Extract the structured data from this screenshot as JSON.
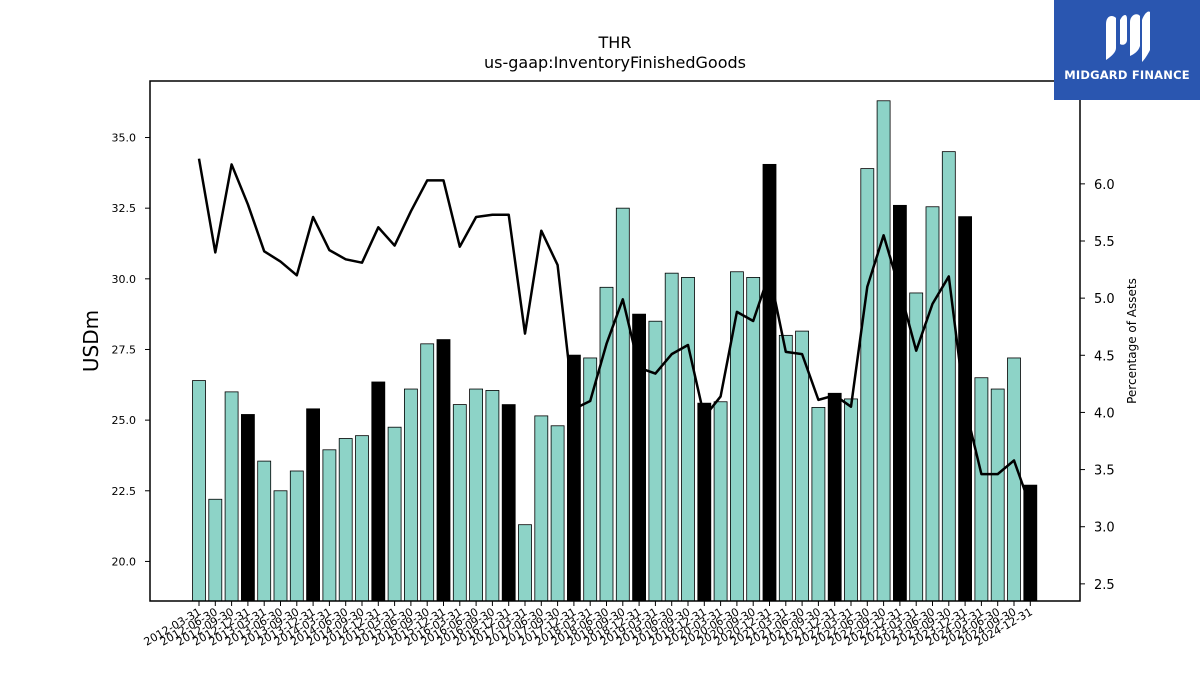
{
  "logo": {
    "text": "MIDGARD FINANCE",
    "bg_color": "#2a56b0",
    "icon": "midgard-m-logo-icon"
  },
  "chart_data": {
    "type": "bar",
    "title": "THR",
    "subtitle": "us-gaap:InventoryFinishedGoods",
    "ylabel": "USDm",
    "y2label": "Percentage of Assets",
    "ylim": [
      18.6,
      37.0
    ],
    "y2lim": [
      2.35,
      6.9
    ],
    "yticks": [
      "20.0",
      "22.5",
      "25.0",
      "27.5",
      "30.0",
      "32.5",
      "35.0"
    ],
    "y2ticks": [
      "2.5",
      "3.0",
      "3.5",
      "4.0",
      "4.5",
      "5.0",
      "5.5",
      "6.0"
    ],
    "bar_color": "#8dd3c7",
    "highlight_color": "#000000",
    "line_color": "#000000",
    "categories": [
      "2012-03-31",
      "2012-06-30",
      "2012-09-30",
      "2012-12-31",
      "2013-03-31",
      "2013-06-30",
      "2013-09-30",
      "2013-12-31",
      "2014-03-31",
      "2014-06-30",
      "2014-09-30",
      "2014-12-31",
      "2015-03-31",
      "2015-06-30",
      "2015-09-30",
      "2015-12-31",
      "2016-03-31",
      "2016-06-30",
      "2016-09-30",
      "2016-12-31",
      "2017-03-31",
      "2017-06-30",
      "2017-09-30",
      "2017-12-31",
      "2018-03-31",
      "2018-06-30",
      "2018-09-30",
      "2018-12-31",
      "2019-03-31",
      "2019-06-30",
      "2019-09-30",
      "2019-12-31",
      "2020-03-31",
      "2020-06-30",
      "2020-09-30",
      "2020-12-31",
      "2021-03-31",
      "2021-06-30",
      "2021-09-30",
      "2021-12-31",
      "2022-03-31",
      "2022-06-30",
      "2022-09-30",
      "2022-12-31",
      "2023-03-31",
      "2023-06-30",
      "2023-09-30",
      "2023-12-31",
      "2024-03-31",
      "2024-06-30",
      "2024-09-30",
      "2024-12-31"
    ],
    "x_tick_labels": [
      "2012-03-31",
      "2012-06-30",
      "2012-09-30",
      "2012-12-31",
      "2013-03-31",
      "2013-06-30",
      "2013-09-30",
      "2013-12-31",
      "2014-03-31",
      "2014-06-30",
      "2014-09-30",
      "2014-12-31",
      "2015-03-31",
      "2015-06-30",
      "2015-09-30",
      "2015-12-31",
      "2016-03-31",
      "2016-06-30",
      "2016-09-30",
      "2016-12-31",
      "2017-03-31",
      "2017-06-30",
      "2017-09-30",
      "2017-12-31",
      "2018-03-31",
      "2018-06-30",
      "2018-09-30",
      "2018-12-31",
      "2019-03-31",
      "2019-06-30",
      "2019-09-30",
      "2019-12-31",
      "2020-03-31",
      "2020-06-30",
      "2020-09-30",
      "2020-12-31",
      "2021-03-31",
      "2021-06-30",
      "2021-09-30",
      "2021-12-31",
      "2022-03-31",
      "2022-06-30",
      "2022-09-30",
      "2022-12-31",
      "2023-03-31",
      "2023-06-30",
      "2023-09-30",
      "2023-12-31",
      "2024-03-31",
      "2024-06-30",
      "2024-09-30",
      "2024-12-31"
    ],
    "series": [
      {
        "type": "bar",
        "values": [
          26.4,
          22.2,
          26.0,
          25.2,
          23.55,
          22.5,
          23.2,
          25.4,
          23.95,
          24.35,
          24.45,
          26.35,
          24.75,
          26.1,
          27.7,
          27.85,
          25.55,
          26.1,
          26.05,
          25.55,
          21.3,
          25.15,
          24.8,
          27.3,
          27.2,
          29.7,
          32.5,
          28.75,
          28.5,
          30.2,
          30.05,
          25.6,
          25.65,
          30.25,
          30.05,
          34.05,
          28.0,
          28.15,
          25.45,
          25.95,
          25.75,
          33.9,
          36.3,
          32.6,
          29.5,
          32.55,
          34.5,
          32.2,
          26.5,
          26.1,
          27.2,
          22.7
        ],
        "highlight": [
          false,
          false,
          false,
          true,
          false,
          false,
          false,
          true,
          false,
          false,
          false,
          true,
          false,
          false,
          false,
          true,
          false,
          false,
          false,
          true,
          false,
          false,
          false,
          true,
          false,
          false,
          false,
          true,
          false,
          false,
          false,
          true,
          false,
          false,
          false,
          true,
          false,
          false,
          false,
          true,
          false,
          false,
          false,
          true,
          false,
          false,
          false,
          true,
          false,
          false,
          false,
          true
        ]
      },
      {
        "type": "line",
        "axis": "right",
        "values": [
          6.22,
          5.4,
          6.17,
          5.82,
          5.41,
          5.32,
          5.2,
          5.71,
          5.42,
          5.34,
          5.31,
          5.62,
          5.46,
          5.76,
          6.03,
          6.03,
          5.45,
          5.71,
          5.73,
          5.73,
          4.69,
          5.59,
          5.29,
          4.03,
          4.1,
          4.6,
          4.99,
          4.39,
          4.34,
          4.51,
          4.59,
          3.96,
          4.14,
          4.88,
          4.8,
          5.22,
          4.53,
          4.51,
          4.11,
          4.15,
          4.05,
          5.1,
          5.55,
          5.07,
          4.54,
          4.95,
          5.19,
          4.05,
          3.46,
          3.46,
          3.58,
          3.18
        ]
      }
    ]
  }
}
